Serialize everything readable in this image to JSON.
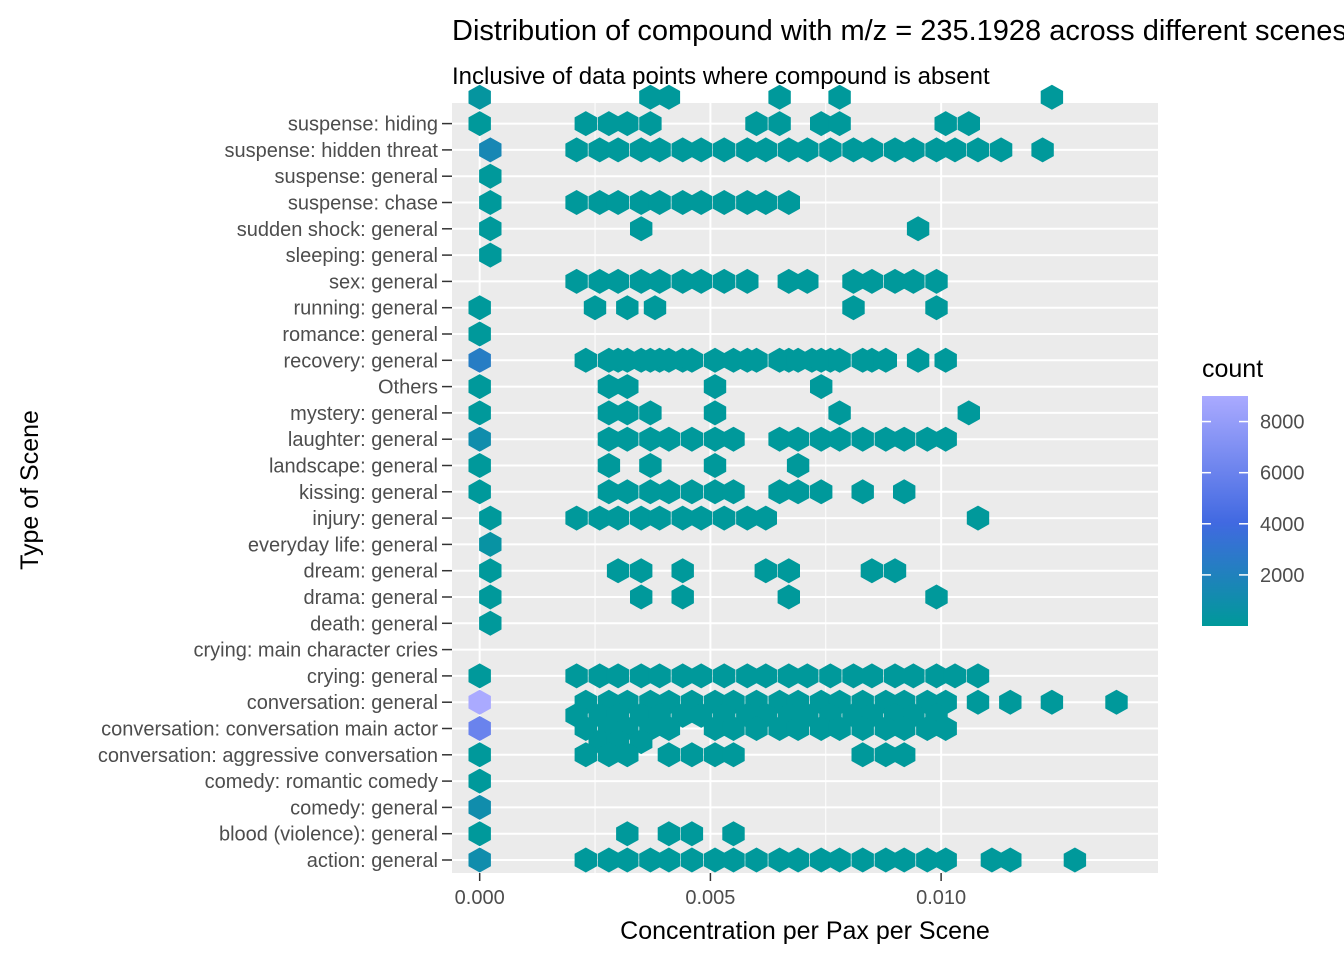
{
  "chart_data": {
    "type": "heatmap",
    "subtype": "hexbin",
    "title": "Distribution of compound with m/z = 235.1928 across different scenes",
    "subtitle": "Inclusive of data points where compound is absent",
    "xlabel": "Concentration per Pax per Scene",
    "ylabel": "Type of Scene",
    "xlim": [
      -0.0006,
      0.0147
    ],
    "x_ticks": [
      0,
      0.005,
      0.01
    ],
    "x_tick_labels": [
      "0.000",
      "0.005",
      "0.010"
    ],
    "grid": true,
    "legend": {
      "title": "count",
      "position": "right",
      "ticks": [
        2000,
        4000,
        6000,
        8000
      ],
      "tick_labels": [
        "2000",
        "4000",
        "6000",
        "8000"
      ],
      "range": [
        1,
        9000
      ],
      "low_color": "#00999a",
      "mid_color": "#4169e1",
      "high_color": "#aaaaff"
    },
    "colors": {
      "panel_bg": "#ebebeb",
      "grid": "#ffffff",
      "hex": "#00999a"
    },
    "categories": [
      "action: general",
      "blood (violence): general",
      "comedy: general",
      "comedy: romantic comedy",
      "conversation: aggressive conversation",
      "conversation: conversation main actor",
      "conversation: general",
      "crying: general",
      "crying: main character cries",
      "death: general",
      "drama: general",
      "dream: general",
      "everyday life: general",
      "injury: general",
      "kissing: general",
      "landscape: general",
      "laughter: general",
      "mystery: general",
      "Others",
      "recovery: general",
      "romance: general",
      "running: general",
      "sex: general",
      "sleeping: general",
      "sudden shock: general",
      "suspense: chase",
      "suspense: general",
      "suspense: hidden threat",
      "suspense: hiding"
    ],
    "bins": [
      {
        "y": 28.5,
        "x": [
          0.0
        ],
        "counts": [
          300
        ]
      },
      {
        "y": 28.5,
        "x": [
          0.0037,
          0.0041,
          0.0065,
          0.0078,
          0.0124
        ]
      },
      {
        "y": 27.5,
        "x": [
          0.0,
          0.0023,
          0.0028,
          0.0032,
          0.0037,
          0.006,
          0.0065,
          0.0074,
          0.0078,
          0.0101,
          0.0106
        ]
      },
      {
        "y": 26.5,
        "x": [
          0.00023
        ],
        "counts": [
          1500
        ]
      },
      {
        "y": 26.5,
        "x": [
          0.0021,
          0.0026,
          0.003,
          0.0035,
          0.0039,
          0.0044,
          0.0048,
          0.0053,
          0.0058,
          0.0062,
          0.0067,
          0.0071,
          0.0076,
          0.0081,
          0.0085,
          0.009,
          0.0094,
          0.0099,
          0.0103,
          0.0108,
          0.0113,
          0.0122
        ]
      },
      {
        "y": 25.5,
        "x": [
          0.00023
        ]
      },
      {
        "y": 24.5,
        "x": [
          0.00023,
          0.0021,
          0.0026,
          0.003,
          0.0035,
          0.0039,
          0.0044,
          0.0048,
          0.0053,
          0.0058,
          0.0062,
          0.0067
        ]
      },
      {
        "y": 23.5,
        "x": [
          0.00023,
          0.0035,
          0.0095
        ]
      },
      {
        "y": 22.5,
        "x": [
          0.00023
        ]
      },
      {
        "y": 21.5,
        "x": [
          0.0021,
          0.0026,
          0.003,
          0.0035,
          0.0039,
          0.0044,
          0.0048,
          0.0053,
          0.0058,
          0.0067,
          0.0071,
          0.0081,
          0.0085,
          0.009,
          0.0094,
          0.0099
        ]
      },
      {
        "y": 20.5,
        "x": [
          0.0,
          0.0025,
          0.0032,
          0.0038,
          0.0081,
          0.0099
        ]
      },
      {
        "y": 19.5,
        "x": [
          0.0
        ]
      },
      {
        "y": 18.5,
        "x": [
          0.003,
          0.0035,
          0.0039,
          0.0044,
          0.0058,
          0.0067,
          0.0072,
          0.0076,
          0.0085,
          0.0095
        ]
      },
      {
        "y": 18.5,
        "x": [
          0.0
        ],
        "counts": [
          2400
        ]
      },
      {
        "y": 18.5,
        "x": [
          0.0023,
          0.0028,
          0.0032,
          0.0037,
          0.0041,
          0.0046,
          0.0051,
          0.0055,
          0.006,
          0.0065,
          0.0069,
          0.0074,
          0.0078,
          0.0083,
          0.0088,
          0.0101
        ]
      },
      {
        "y": 17.5,
        "x": [
          0.0,
          0.0028,
          0.0032,
          0.0051,
          0.0074
        ]
      },
      {
        "y": 16.5,
        "x": [
          0.0,
          0.0028,
          0.0032,
          0.0037,
          0.0051,
          0.0078,
          0.0106
        ]
      },
      {
        "y": 15.5,
        "x": [
          0.0
        ],
        "counts": [
          1000
        ]
      },
      {
        "y": 15.5,
        "x": [
          0.0028,
          0.0032,
          0.0037,
          0.0041,
          0.0046,
          0.0051,
          0.0055,
          0.0065,
          0.0069,
          0.0074,
          0.0078,
          0.0083,
          0.0088,
          0.0092,
          0.0097,
          0.0101
        ]
      },
      {
        "y": 14.5,
        "x": [
          0.0,
          0.0028,
          0.0037,
          0.0051,
          0.0069
        ]
      },
      {
        "y": 13.5,
        "x": [
          0.0,
          0.0028,
          0.0032,
          0.0037,
          0.0041,
          0.0046,
          0.0051,
          0.0055,
          0.0065,
          0.0069,
          0.0074,
          0.0083,
          0.0092
        ]
      },
      {
        "y": 12.5,
        "x": [
          0.00023,
          0.0021,
          0.0026,
          0.003,
          0.0035,
          0.0039,
          0.0044,
          0.0048,
          0.0053,
          0.0058,
          0.0062,
          0.0108
        ]
      },
      {
        "y": 11.5,
        "x": [
          0.00023
        ],
        "counts": [
          500
        ]
      },
      {
        "y": 10.5,
        "x": [
          0.00023,
          0.003,
          0.0035,
          0.0044,
          0.0062,
          0.0067,
          0.0085,
          0.009
        ]
      },
      {
        "y": 9.5,
        "x": [
          0.00023,
          0.0035,
          0.0044,
          0.0067,
          0.0099
        ]
      },
      {
        "y": 8.5,
        "x": [
          0.00023
        ]
      },
      {
        "y": 6.5,
        "x": [
          0.0,
          0.0021,
          0.0026,
          0.003,
          0.0035,
          0.0039,
          0.0044,
          0.0048,
          0.0053,
          0.0058,
          0.0062,
          0.0067,
          0.0071,
          0.0076,
          0.0081,
          0.0085,
          0.009,
          0.0094,
          0.0099,
          0.0103,
          0.0108
        ]
      },
      {
        "y": 5.5,
        "x": [
          0.0
        ],
        "counts": [
          9000
        ]
      },
      {
        "y": 5.5,
        "x": [
          0.0023,
          0.0028,
          0.0032,
          0.0037,
          0.0041,
          0.0046,
          0.0051,
          0.0055,
          0.006,
          0.0065,
          0.0069,
          0.0074,
          0.0078,
          0.0083,
          0.0088,
          0.0092,
          0.0097,
          0.0101,
          0.0108,
          0.0115,
          0.0124,
          0.0138
        ]
      },
      {
        "y": 5.0,
        "x": [
          0.0021,
          0.0026,
          0.003,
          0.0035,
          0.0039,
          0.0044,
          0.0048,
          0.0053,
          0.0058,
          0.0062,
          0.0067,
          0.0071,
          0.0076,
          0.0081,
          0.0085,
          0.009,
          0.0094,
          0.0099
        ]
      },
      {
        "y": 4.5,
        "x": [
          0.0
        ],
        "counts": [
          6000
        ]
      },
      {
        "y": 4.5,
        "x": [
          0.0023,
          0.0028,
          0.0032,
          0.0037,
          0.0041,
          0.0051,
          0.0055,
          0.006,
          0.0065,
          0.0069,
          0.0074,
          0.0078,
          0.0083,
          0.0088,
          0.0092,
          0.0097,
          0.0101
        ]
      },
      {
        "y": 4.0,
        "x": [
          0.0026,
          0.003,
          0.0035
        ]
      },
      {
        "y": 3.5,
        "x": [
          0.0,
          0.0023,
          0.0028,
          0.0032,
          0.0041,
          0.0046,
          0.0051,
          0.0055,
          0.0083,
          0.0088,
          0.0092
        ]
      },
      {
        "y": 2.5,
        "x": [
          0.0
        ]
      },
      {
        "y": 1.5,
        "x": [
          0.0
        ],
        "counts": [
          1000
        ]
      },
      {
        "y": 0.5,
        "x": [
          0.0,
          0.0032,
          0.0041,
          0.0046,
          0.0055
        ]
      },
      {
        "y": -0.5,
        "x": [
          0.0
        ],
        "counts": [
          1000
        ]
      },
      {
        "y": -0.5,
        "x": [
          0.0023,
          0.0028,
          0.0032,
          0.0037,
          0.0041,
          0.0046,
          0.0051,
          0.0055,
          0.006,
          0.0065,
          0.0069,
          0.0074,
          0.0078,
          0.0083,
          0.0088,
          0.0092,
          0.0097,
          0.0101,
          0.0111,
          0.0115,
          0.0129
        ]
      }
    ]
  }
}
